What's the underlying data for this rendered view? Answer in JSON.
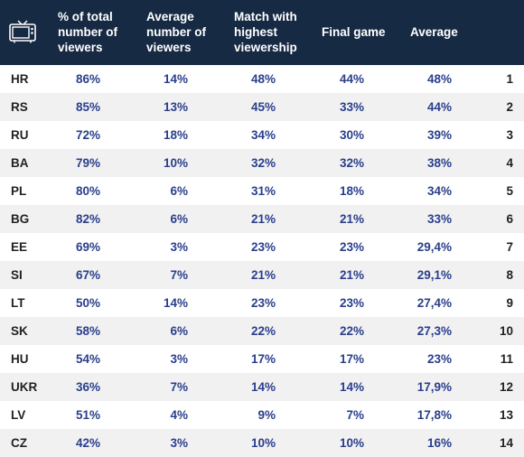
{
  "headers": {
    "col1": "% of  total number of viewers",
    "col2": "Average number of viewers",
    "col3": "Match with highest viewership",
    "col4": "Final game",
    "col5": "Average"
  },
  "rows": [
    {
      "code": "HR",
      "c1": "86%",
      "c2": "14%",
      "c3": "48%",
      "c4": "44%",
      "c5": "48%",
      "rank": "1"
    },
    {
      "code": "RS",
      "c1": "85%",
      "c2": "13%",
      "c3": "45%",
      "c4": "33%",
      "c5": "44%",
      "rank": "2"
    },
    {
      "code": "RU",
      "c1": "72%",
      "c2": "18%",
      "c3": "34%",
      "c4": "30%",
      "c5": "39%",
      "rank": "3"
    },
    {
      "code": "BA",
      "c1": "79%",
      "c2": "10%",
      "c3": "32%",
      "c4": "32%",
      "c5": "38%",
      "rank": "4"
    },
    {
      "code": "PL",
      "c1": "80%",
      "c2": "6%",
      "c3": "31%",
      "c4": "18%",
      "c5": "34%",
      "rank": "5"
    },
    {
      "code": "BG",
      "c1": "82%",
      "c2": "6%",
      "c3": "21%",
      "c4": "21%",
      "c5": "33%",
      "rank": "6"
    },
    {
      "code": "EE",
      "c1": "69%",
      "c2": "3%",
      "c3": "23%",
      "c4": "23%",
      "c5": "29,4%",
      "rank": "7"
    },
    {
      "code": "SI",
      "c1": "67%",
      "c2": "7%",
      "c3": "21%",
      "c4": "21%",
      "c5": "29,1%",
      "rank": "8"
    },
    {
      "code": "LT",
      "c1": "50%",
      "c2": "14%",
      "c3": "23%",
      "c4": "23%",
      "c5": "27,4%",
      "rank": "9"
    },
    {
      "code": "SK",
      "c1": "58%",
      "c2": "6%",
      "c3": "22%",
      "c4": "22%",
      "c5": "27,3%",
      "rank": "10"
    },
    {
      "code": "HU",
      "c1": "54%",
      "c2": "3%",
      "c3": "17%",
      "c4": "17%",
      "c5": "23%",
      "rank": "11"
    },
    {
      "code": "UKR",
      "c1": "36%",
      "c2": "7%",
      "c3": "14%",
      "c4": "14%",
      "c5": "17,9%",
      "rank": "12"
    },
    {
      "code": "LV",
      "c1": "51%",
      "c2": "4%",
      "c3": "9%",
      "c4": "7%",
      "c5": "17,8%",
      "rank": "13"
    },
    {
      "code": "CZ",
      "c1": "42%",
      "c2": "3%",
      "c3": "10%",
      "c4": "10%",
      "c5": "16%",
      "rank": "14"
    }
  ],
  "icons": {
    "header_icon": "tv-icon"
  },
  "colors": {
    "header_bg": "#162a44",
    "value_text": "#2a3f8c",
    "stripe": "#f1f1f1"
  }
}
